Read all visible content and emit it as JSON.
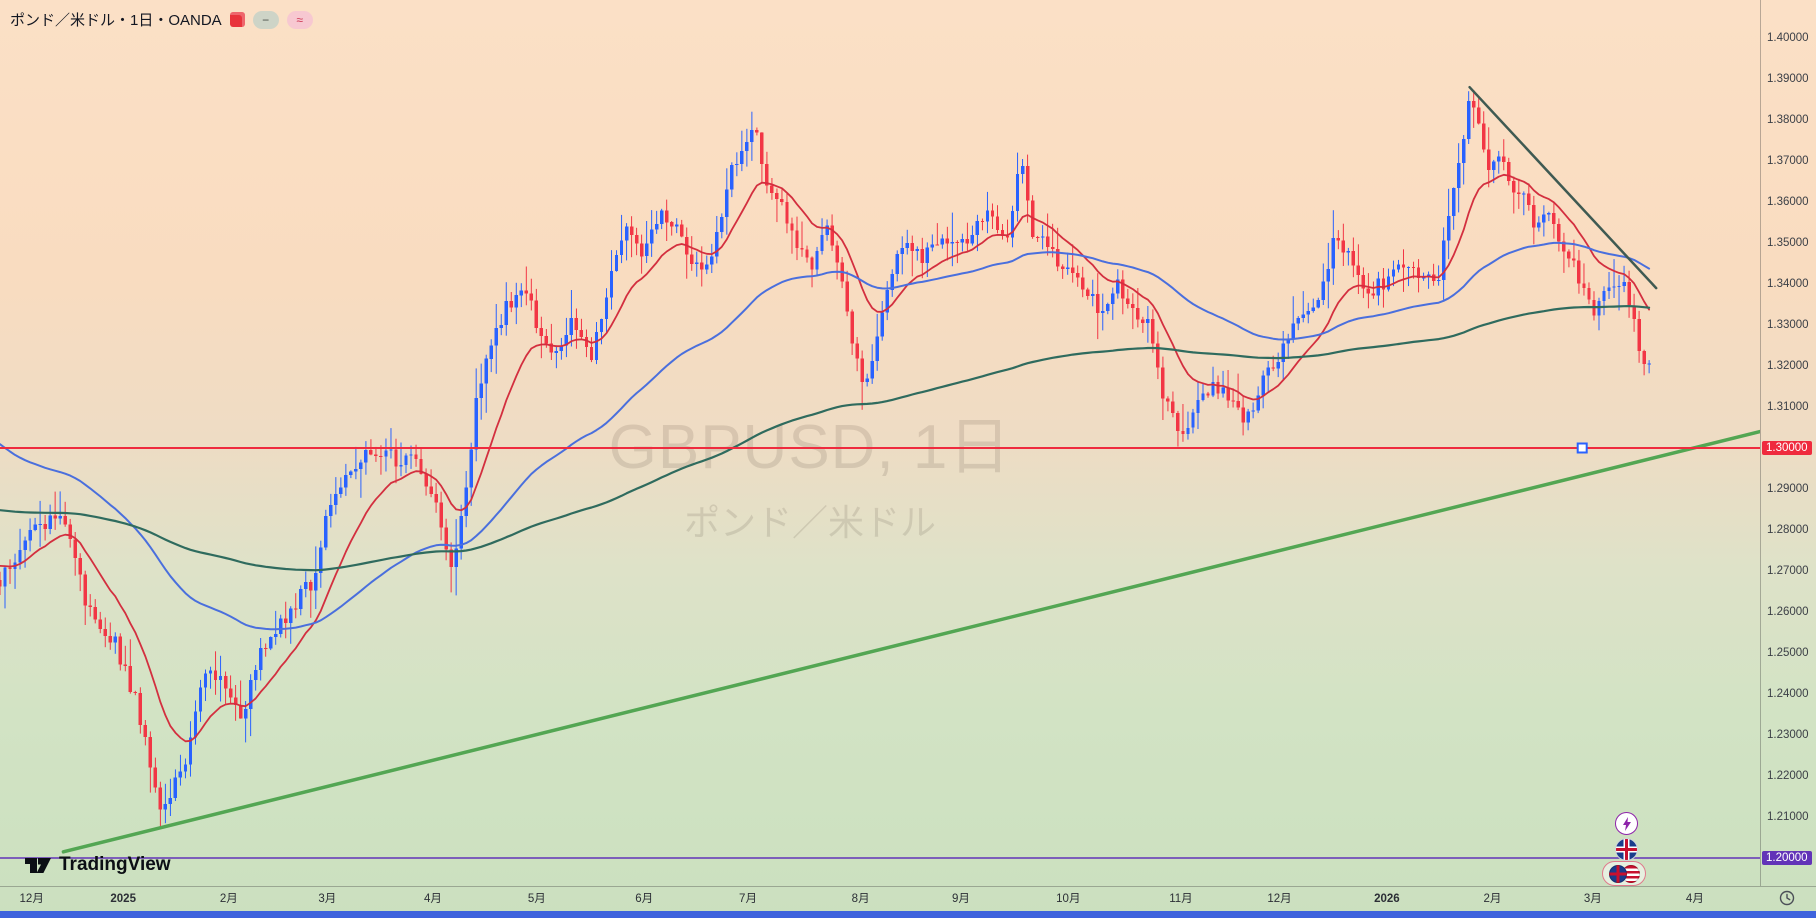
{
  "legend": {
    "title": "ポンド／米ドル・1日・OANDA",
    "chips": [
      {
        "glyph": "−",
        "bg": "#ced4c7",
        "fg": "#4a5048"
      },
      {
        "glyph": "≈",
        "bg": "#f7c8d1",
        "fg": "#cc3350"
      }
    ]
  },
  "watermark": {
    "line1": "GBPUSD, 1日",
    "line2": "ポンド／米ドル"
  },
  "logo": {
    "text": "TradingView"
  },
  "side_buttons": [
    {
      "name": "lightning-button"
    },
    {
      "name": "gb-flag-button"
    },
    {
      "name": "flag-pair-button"
    }
  ],
  "colors": {
    "bottom_bar": "#3e63dd",
    "accent_blue": "#2962FF",
    "handle_border": "#2962FF"
  },
  "chart_data": {
    "type": "candlestick",
    "title": "GBPUSD, 1日",
    "symbol": "GBPUSD",
    "symbol_jp": "ポンド／米ドル",
    "interval": "1日",
    "exchange": "OANDA",
    "up_color": "#2962FF",
    "down_color": "#F23645",
    "y_axis": {
      "min": 1.2,
      "max": 1.4,
      "step": 0.01,
      "decimals": 5
    },
    "x_axis": {
      "labels": [
        {
          "text": "12月",
          "pos": 0.018
        },
        {
          "text": "2025",
          "pos": 0.07,
          "year": true
        },
        {
          "text": "2月",
          "pos": 0.13
        },
        {
          "text": "3月",
          "pos": 0.186
        },
        {
          "text": "4月",
          "pos": 0.246
        },
        {
          "text": "5月",
          "pos": 0.305
        },
        {
          "text": "6月",
          "pos": 0.366
        },
        {
          "text": "7月",
          "pos": 0.425
        },
        {
          "text": "8月",
          "pos": 0.489
        },
        {
          "text": "9月",
          "pos": 0.546
        },
        {
          "text": "10月",
          "pos": 0.607
        },
        {
          "text": "11月",
          "pos": 0.671
        },
        {
          "text": "12月",
          "pos": 0.727
        },
        {
          "text": "2026",
          "pos": 0.788,
          "year": true
        },
        {
          "text": "2月",
          "pos": 0.848
        },
        {
          "text": "3月",
          "pos": 0.905
        },
        {
          "text": "4月",
          "pos": 0.963
        }
      ]
    },
    "candles": {
      "count": 330,
      "end_frac": 0.937,
      "waypoints": [
        [
          0.0,
          1.268
        ],
        [
          0.02,
          1.28
        ],
        [
          0.036,
          1.284
        ],
        [
          0.049,
          1.262
        ],
        [
          0.066,
          1.252
        ],
        [
          0.076,
          1.24
        ],
        [
          0.091,
          1.213
        ],
        [
          0.105,
          1.221
        ],
        [
          0.115,
          1.246
        ],
        [
          0.128,
          1.243
        ],
        [
          0.138,
          1.234
        ],
        [
          0.148,
          1.251
        ],
        [
          0.158,
          1.257
        ],
        [
          0.168,
          1.262
        ],
        [
          0.178,
          1.268
        ],
        [
          0.188,
          1.288
        ],
        [
          0.198,
          1.293
        ],
        [
          0.208,
          1.298
        ],
        [
          0.217,
          1.3
        ],
        [
          0.227,
          1.296
        ],
        [
          0.237,
          1.297
        ],
        [
          0.249,
          1.284
        ],
        [
          0.257,
          1.271
        ],
        [
          0.265,
          1.29
        ],
        [
          0.271,
          1.312
        ],
        [
          0.28,
          1.327
        ],
        [
          0.29,
          1.336
        ],
        [
          0.3,
          1.34
        ],
        [
          0.306,
          1.327
        ],
        [
          0.316,
          1.324
        ],
        [
          0.326,
          1.332
        ],
        [
          0.336,
          1.322
        ],
        [
          0.346,
          1.341
        ],
        [
          0.356,
          1.353
        ],
        [
          0.366,
          1.348
        ],
        [
          0.375,
          1.357
        ],
        [
          0.385,
          1.354
        ],
        [
          0.395,
          1.344
        ],
        [
          0.405,
          1.348
        ],
        [
          0.415,
          1.367
        ],
        [
          0.424,
          1.375
        ],
        [
          0.429,
          1.378
        ],
        [
          0.436,
          1.365
        ],
        [
          0.443,
          1.36
        ],
        [
          0.451,
          1.35
        ],
        [
          0.461,
          1.344
        ],
        [
          0.469,
          1.355
        ],
        [
          0.478,
          1.342
        ],
        [
          0.485,
          1.322
        ],
        [
          0.491,
          1.316
        ],
        [
          0.498,
          1.327
        ],
        [
          0.507,
          1.343
        ],
        [
          0.514,
          1.35
        ],
        [
          0.524,
          1.347
        ],
        [
          0.534,
          1.351
        ],
        [
          0.543,
          1.348
        ],
        [
          0.553,
          1.353
        ],
        [
          0.563,
          1.357
        ],
        [
          0.572,
          1.35
        ],
        [
          0.58,
          1.371
        ],
        [
          0.586,
          1.353
        ],
        [
          0.596,
          1.349
        ],
        [
          0.606,
          1.343
        ],
        [
          0.616,
          1.339
        ],
        [
          0.626,
          1.333
        ],
        [
          0.634,
          1.341
        ],
        [
          0.642,
          1.334
        ],
        [
          0.652,
          1.33
        ],
        [
          0.659,
          1.316
        ],
        [
          0.665,
          1.309
        ],
        [
          0.673,
          1.302
        ],
        [
          0.682,
          1.313
        ],
        [
          0.69,
          1.316
        ],
        [
          0.698,
          1.311
        ],
        [
          0.708,
          1.306
        ],
        [
          0.718,
          1.316
        ],
        [
          0.728,
          1.324
        ],
        [
          0.738,
          1.332
        ],
        [
          0.748,
          1.334
        ],
        [
          0.758,
          1.35
        ],
        [
          0.767,
          1.346
        ],
        [
          0.777,
          1.337
        ],
        [
          0.787,
          1.341
        ],
        [
          0.797,
          1.346
        ],
        [
          0.807,
          1.34
        ],
        [
          0.817,
          1.342
        ],
        [
          0.827,
          1.364
        ],
        [
          0.835,
          1.386
        ],
        [
          0.841,
          1.378
        ],
        [
          0.846,
          1.367
        ],
        [
          0.853,
          1.371
        ],
        [
          0.86,
          1.364
        ],
        [
          0.866,
          1.36
        ],
        [
          0.873,
          1.354
        ],
        [
          0.879,
          1.357
        ],
        [
          0.886,
          1.35
        ],
        [
          0.893,
          1.346
        ],
        [
          0.899,
          1.34
        ],
        [
          0.906,
          1.333
        ],
        [
          0.912,
          1.337
        ],
        [
          0.919,
          1.341
        ],
        [
          0.924,
          1.338
        ],
        [
          0.93,
          1.327
        ],
        [
          0.935,
          1.321
        ]
      ]
    },
    "moving_averages": [
      {
        "name": "ma-fast-red",
        "color": "#d32f3f",
        "alpha": 0.13,
        "seed": 1.272,
        "width": 1.8
      },
      {
        "name": "ma-mid-blue",
        "color": "#4a6fdd",
        "alpha": 0.03,
        "seed": 1.302,
        "width": 2.0
      },
      {
        "name": "ma-slow-green",
        "color": "#2f6b5e",
        "alpha": 0.009,
        "seed": 1.285,
        "width": 2.2
      }
    ],
    "trendlines": [
      {
        "name": "uptrend-line",
        "x1": 0.036,
        "p1": 1.2015,
        "x2": 1.0,
        "p2": 1.304,
        "color": "#53a653",
        "width": 3.5
      },
      {
        "name": "downtrend-line",
        "x1": 0.835,
        "p1": 1.388,
        "x2": 0.941,
        "p2": 1.339,
        "color": "#3f5a52",
        "width": 2.5
      }
    ],
    "h_lines": [
      {
        "name": "level-1.30",
        "price": 1.3,
        "label": "1.30000",
        "color": "#ef2b3e",
        "width": 2,
        "label_bg": "#ef2b3e",
        "handle_x": 0.899
      },
      {
        "name": "level-1.20",
        "price": 1.2,
        "label": "1.20000",
        "color": "#6233b8",
        "width": 1.6,
        "label_bg": "#6233b8"
      }
    ],
    "legend_note": "grid off, watermark centered"
  }
}
